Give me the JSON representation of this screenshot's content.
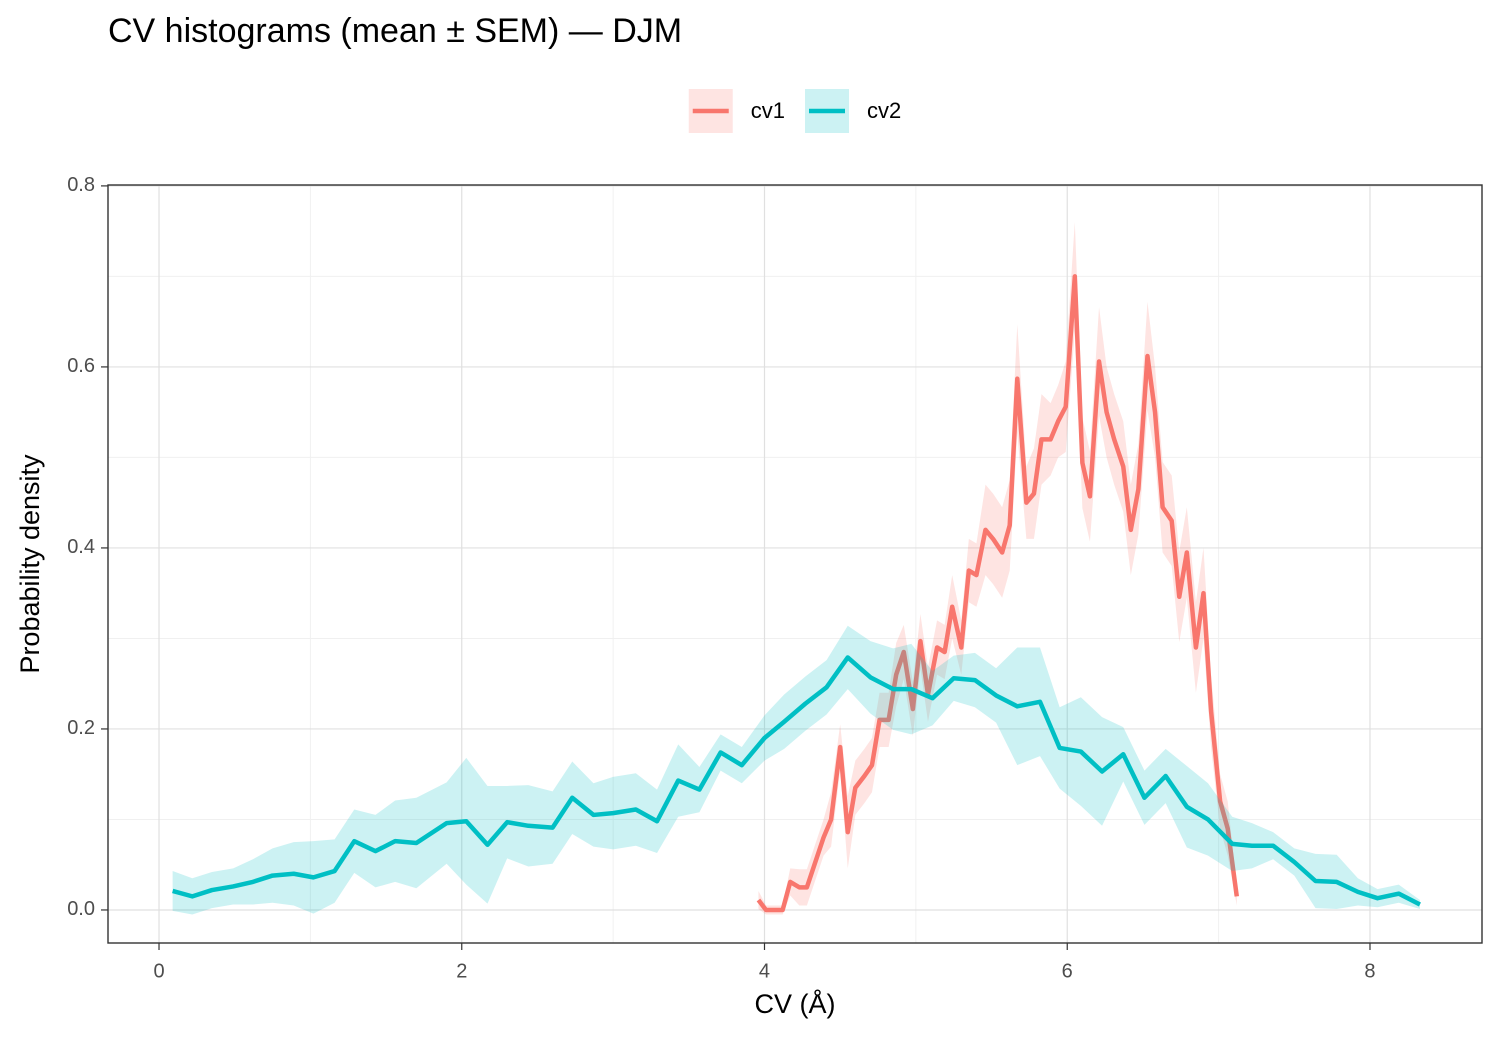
{
  "chart_data": {
    "type": "line",
    "title": "CV histograms (mean ± SEM) — DJM",
    "x_label": "CV (Å)",
    "y_label": "Probability density",
    "xlim": [
      -0.337,
      8.74
    ],
    "ylim": [
      -0.0365,
      0.801
    ],
    "xticks": [
      0,
      2,
      4,
      6,
      8
    ],
    "yticks": [
      {
        "value": 0,
        "label": "0.0"
      },
      0.2,
      0.4,
      0.6,
      0.8
    ],
    "grid": true,
    "legend": "top",
    "series": [
      {
        "name": "cv1",
        "color": "#F8766D",
        "x": [
          3.96,
          4.01,
          4.07,
          4.12,
          4.17,
          4.23,
          4.28,
          4.33,
          4.39,
          4.44,
          4.5,
          4.55,
          4.6,
          4.66,
          4.71,
          4.76,
          4.82,
          4.87,
          4.92,
          4.98,
          5.03,
          5.08,
          5.14,
          5.19,
          5.24,
          5.3,
          5.35,
          5.4,
          5.46,
          5.51,
          5.57,
          5.62,
          5.67,
          5.73,
          5.78,
          5.83,
          5.89,
          5.94,
          5.99,
          6.05,
          6.1,
          6.15,
          6.21,
          6.26,
          6.31,
          6.37,
          6.42,
          6.47,
          6.53,
          6.58,
          6.63,
          6.69,
          6.74,
          6.79,
          6.85,
          6.9,
          6.95,
          7.01,
          7.06,
          7.12
        ],
        "values": [
          0.011,
          0,
          0,
          0,
          0.031,
          0.025,
          0.025,
          0.05,
          0.08,
          0.1,
          0.18,
          0.086,
          0.135,
          0.148,
          0.16,
          0.21,
          0.21,
          0.26,
          0.285,
          0.222,
          0.297,
          0.238,
          0.29,
          0.285,
          0.335,
          0.29,
          0.375,
          0.37,
          0.42,
          0.41,
          0.395,
          0.425,
          0.587,
          0.45,
          0.46,
          0.52,
          0.52,
          0.54,
          0.556,
          0.7,
          0.494,
          0.457,
          0.606,
          0.55,
          0.52,
          0.49,
          0.42,
          0.465,
          0.612,
          0.55,
          0.445,
          0.43,
          0.346,
          0.395,
          0.29,
          0.35,
          0.22,
          0.12,
          0.09,
          0.015
        ],
        "sem": [
          0.01,
          0.005,
          0.005,
          0.005,
          0.015,
          0.02,
          0.02,
          0.02,
          0.02,
          0.03,
          0.025,
          0.04,
          0.03,
          0.03,
          0.03,
          0.03,
          0.03,
          0.035,
          0.03,
          0.03,
          0.03,
          0.03,
          0.03,
          0.03,
          0.035,
          0.03,
          0.035,
          0.035,
          0.05,
          0.05,
          0.05,
          0.05,
          0.06,
          0.04,
          0.05,
          0.05,
          0.04,
          0.04,
          0.05,
          0.06,
          0.05,
          0.05,
          0.06,
          0.05,
          0.05,
          0.05,
          0.05,
          0.05,
          0.06,
          0.05,
          0.05,
          0.05,
          0.05,
          0.05,
          0.05,
          0.05,
          0.04,
          0.03,
          0.03,
          0.01
        ]
      },
      {
        "name": "cv2",
        "color": "#00BFC4",
        "x": [
          0.09,
          0.22,
          0.35,
          0.49,
          0.62,
          0.75,
          0.89,
          1.02,
          1.16,
          1.29,
          1.43,
          1.56,
          1.7,
          1.9,
          2.03,
          2.17,
          2.3,
          2.44,
          2.6,
          2.73,
          2.87,
          3.0,
          3.15,
          3.29,
          3.43,
          3.57,
          3.71,
          3.85,
          4.0,
          4.13,
          4.27,
          4.41,
          4.55,
          4.7,
          4.85,
          4.97,
          5.11,
          5.25,
          5.39,
          5.53,
          5.67,
          5.82,
          5.95,
          6.09,
          6.23,
          6.37,
          6.51,
          6.65,
          6.79,
          6.93,
          7.09,
          7.22,
          7.36,
          7.5,
          7.64,
          7.78,
          7.92,
          8.05,
          8.19,
          8.33
        ],
        "values": [
          0.021,
          0.015,
          0.022,
          0.026,
          0.031,
          0.038,
          0.04,
          0.036,
          0.043,
          0.076,
          0.065,
          0.076,
          0.074,
          0.096,
          0.098,
          0.072,
          0.097,
          0.093,
          0.091,
          0.124,
          0.105,
          0.107,
          0.111,
          0.098,
          0.143,
          0.133,
          0.174,
          0.16,
          0.19,
          0.208,
          0.228,
          0.246,
          0.279,
          0.257,
          0.244,
          0.244,
          0.234,
          0.256,
          0.254,
          0.237,
          0.225,
          0.23,
          0.179,
          0.175,
          0.153,
          0.172,
          0.124,
          0.148,
          0.114,
          0.1,
          0.073,
          0.071,
          0.071,
          0.053,
          0.032,
          0.031,
          0.02,
          0.013,
          0.018,
          0.006
        ],
        "sem": [
          0.022,
          0.02,
          0.02,
          0.02,
          0.025,
          0.03,
          0.035,
          0.04,
          0.035,
          0.035,
          0.04,
          0.045,
          0.05,
          0.045,
          0.07,
          0.065,
          0.04,
          0.045,
          0.04,
          0.04,
          0.035,
          0.04,
          0.04,
          0.035,
          0.04,
          0.025,
          0.02,
          0.02,
          0.025,
          0.03,
          0.03,
          0.03,
          0.035,
          0.04,
          0.045,
          0.05,
          0.03,
          0.025,
          0.03,
          0.03,
          0.065,
          0.06,
          0.045,
          0.06,
          0.06,
          0.03,
          0.03,
          0.03,
          0.045,
          0.04,
          0.03,
          0.025,
          0.015,
          0.015,
          0.03,
          0.03,
          0.015,
          0.01,
          0.01,
          0.005
        ]
      }
    ]
  }
}
